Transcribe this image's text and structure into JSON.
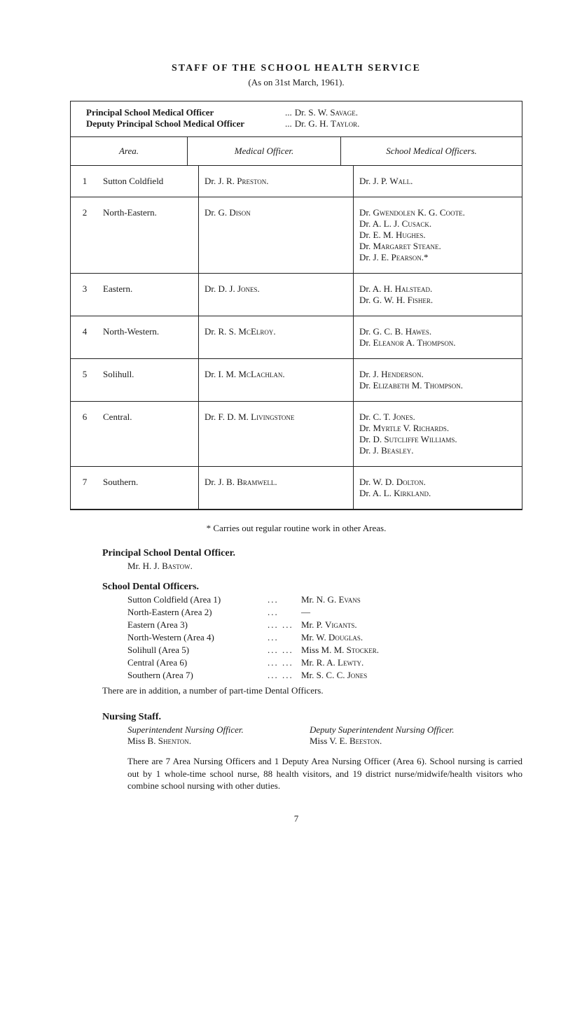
{
  "title": "STAFF  OF  THE  SCHOOL  HEALTH  SERVICE",
  "subtitle": "(As on 31st March, 1961).",
  "principals": {
    "row1_role": "Principal School Medical Officer",
    "row1_dots": "...",
    "row1_name_prefix": "Dr. S. W. ",
    "row1_name_sc": "Savage.",
    "row2_role": "Deputy Principal School Medical Officer",
    "row2_dots": "...",
    "row2_name_prefix": "Dr. G. H. ",
    "row2_name_sc": "Taylor."
  },
  "table": {
    "headers": {
      "area": "Area.",
      "medical": "Medical Officer.",
      "school": "School Medical Officers."
    },
    "rows": [
      {
        "num": "1",
        "area": "Sutton Coldfield",
        "medical_pre": "Dr. J. R. ",
        "medical_sc": "Preston.",
        "school": [
          {
            "pre": "Dr. J. P. ",
            "sc": "Wall."
          }
        ]
      },
      {
        "num": "2",
        "area": "North-Eastern.",
        "medical_pre": "Dr. G. ",
        "medical_sc": "Dison",
        "school": [
          {
            "pre": "Dr. ",
            "sc": "Gwendolen",
            "post": " K. G. ",
            "sc2": "Coote."
          },
          {
            "pre": "Dr. A. L. J. ",
            "sc": "Cusack."
          },
          {
            "pre": "Dr. E. M. ",
            "sc": "Hughes."
          },
          {
            "pre": "Dr. ",
            "sc": "Margaret Steane."
          },
          {
            "pre": "Dr. J. E. ",
            "sc": "Pearson.*"
          }
        ]
      },
      {
        "num": "3",
        "area": "Eastern.",
        "medical_pre": "Dr. D. J. ",
        "medical_sc": "Jones.",
        "school": [
          {
            "pre": "Dr. A. H. ",
            "sc": "Halstead."
          },
          {
            "pre": "Dr. G. W. H. ",
            "sc": "Fisher."
          }
        ]
      },
      {
        "num": "4",
        "area": "North-Western.",
        "medical_pre": "Dr. R. S. ",
        "medical_sc": "McElroy.",
        "school": [
          {
            "pre": "Dr. G. C. B. ",
            "sc": "Hawes."
          },
          {
            "pre": "Dr. ",
            "sc": "Eleanor",
            "post": " A. ",
            "sc2": "Thompson."
          }
        ]
      },
      {
        "num": "5",
        "area": "Solihull.",
        "medical_pre": "Dr. I. M. ",
        "medical_sc": "McLachlan.",
        "school": [
          {
            "pre": "Dr. J. ",
            "sc": "Henderson."
          },
          {
            "pre": "Dr. ",
            "sc": "Elizabeth",
            "post": " M. ",
            "sc2": "Thompson."
          }
        ]
      },
      {
        "num": "6",
        "area": "Central.",
        "medical_pre": "Dr. F. D. M. ",
        "medical_sc": "Livingstone",
        "school": [
          {
            "pre": "Dr. C. T. ",
            "sc": "Jones."
          },
          {
            "pre": "Dr. ",
            "sc": "Myrtle",
            "post": " V. ",
            "sc2": "Richards."
          },
          {
            "pre": "Dr. D. ",
            "sc": "Sutcliffe Williams."
          },
          {
            "pre": "Dr. J. ",
            "sc": "Beasley."
          }
        ]
      },
      {
        "num": "7",
        "area": "Southern.",
        "medical_pre": "Dr. J. B. ",
        "medical_sc": "Bramwell.",
        "school": [
          {
            "pre": "Dr. W. D. ",
            "sc": "Dolton."
          },
          {
            "pre": "Dr. A. L. ",
            "sc": "Kirkland."
          }
        ]
      }
    ]
  },
  "footnote": "* Carries out regular routine work in other Areas.",
  "dental": {
    "principal_title": "Principal School Dental Officer.",
    "principal_name_pre": "Mr. H. J. ",
    "principal_name_sc": "Bastow.",
    "officers_title": "School Dental Officers.",
    "rows": [
      {
        "lbl": "Sutton Coldfield (Area 1)",
        "dots": "...",
        "pre": "Mr. N. G. ",
        "sc": "Evans"
      },
      {
        "lbl": "North-Eastern (Area 2)",
        "dots": "...",
        "pre": "",
        "sc": "—"
      },
      {
        "lbl": "Eastern (Area 3)",
        "dots": "...   ...",
        "pre": "Mr. P. ",
        "sc": "Vigants."
      },
      {
        "lbl": "North-Western (Area 4)",
        "dots": "...",
        "pre": "Mr. W. ",
        "sc": "Douglas."
      },
      {
        "lbl": "Solihull (Area 5)",
        "dots": "...   ...",
        "pre": "Miss M. M. ",
        "sc": "Stocker."
      },
      {
        "lbl": "Central (Area 6)",
        "dots": "...   ...",
        "pre": "Mr. R. A. ",
        "sc": "Lewty."
      },
      {
        "lbl": "Southern (Area 7)",
        "dots": "...   ...",
        "pre": "Mr. S. C. C. ",
        "sc": "Jones"
      }
    ],
    "addition": "There are in addition, a number of part-time Dental Officers."
  },
  "nursing": {
    "title": "Nursing Staff.",
    "left_ital": "Superintendent Nursing Officer.",
    "left_name_pre": "Miss B. ",
    "left_name_sc": "Shenton.",
    "right_ital": "Deputy Superintendent Nursing Officer.",
    "right_name_pre": "Miss V. E. ",
    "right_name_sc": "Beeston.",
    "body": "There are 7 Area Nursing Officers and 1 Deputy Area Nursing Officer (Area 6). School nursing is carried out by 1 whole-time school nurse, 88 health visitors, and 19 district nurse/midwife/health visitors who combine school nursing with other duties."
  },
  "pagenum": "7"
}
